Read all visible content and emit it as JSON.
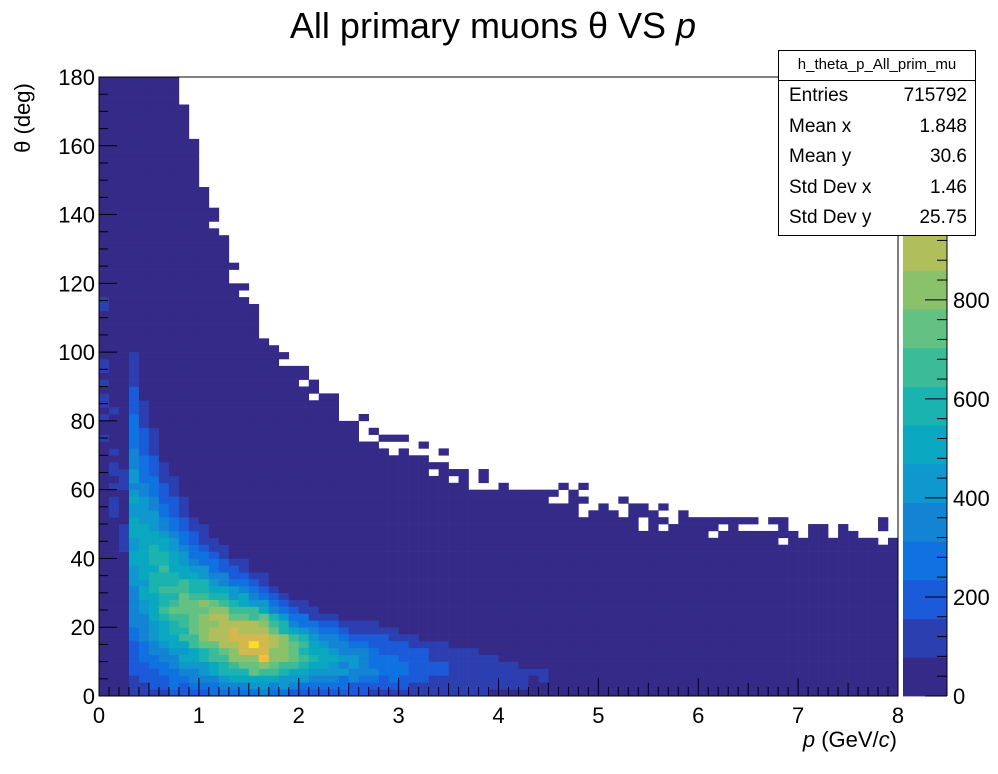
{
  "chart_data": {
    "type": "heatmap",
    "title": "All primary muons θ VS p",
    "title_plain": "All primary muons θ VS ",
    "title_italic": "p",
    "xlabel_italic": "p",
    "xlabel_mid": " (GeV/",
    "xlabel_italic2": "c",
    "xlabel_end": ")",
    "ylabel": "θ (deg)",
    "xlim": [
      0,
      8
    ],
    "ylim": [
      0,
      180
    ],
    "zlim": [
      0,
      1250
    ],
    "xticks": [
      "0",
      "1",
      "2",
      "3",
      "4",
      "5",
      "6",
      "7",
      "8"
    ],
    "yticks": [
      "0",
      "20",
      "40",
      "60",
      "80",
      "100",
      "120",
      "140",
      "160",
      "180"
    ],
    "zticks": [
      "0",
      "200",
      "400",
      "600",
      "800"
    ],
    "bins_x": 80,
    "bins_y": 90,
    "grid": false,
    "palette_colors": [
      "#352a87",
      "#2c3fb0",
      "#1b5ad8",
      "#0f72e0",
      "#1384d4",
      "#0e98ce",
      "#09a8c0",
      "#1bb3b0",
      "#3cbb99",
      "#63c183",
      "#8ac26c",
      "#b0bf5b",
      "#d4b84e",
      "#f5bf3c",
      "#fbdc2a",
      "#f9fb0e"
    ],
    "stats": {
      "name": "h_theta_p_All_prim_mu",
      "rows": [
        {
          "label": "Entries",
          "value": "715792"
        },
        {
          "label": "Mean x",
          "value": "1.848"
        },
        {
          "label": "Mean y",
          "value": "30.6"
        },
        {
          "label": "Std Dev x",
          "value": "1.46"
        },
        {
          "label": "Std Dev y",
          "value": "25.75"
        }
      ]
    }
  }
}
